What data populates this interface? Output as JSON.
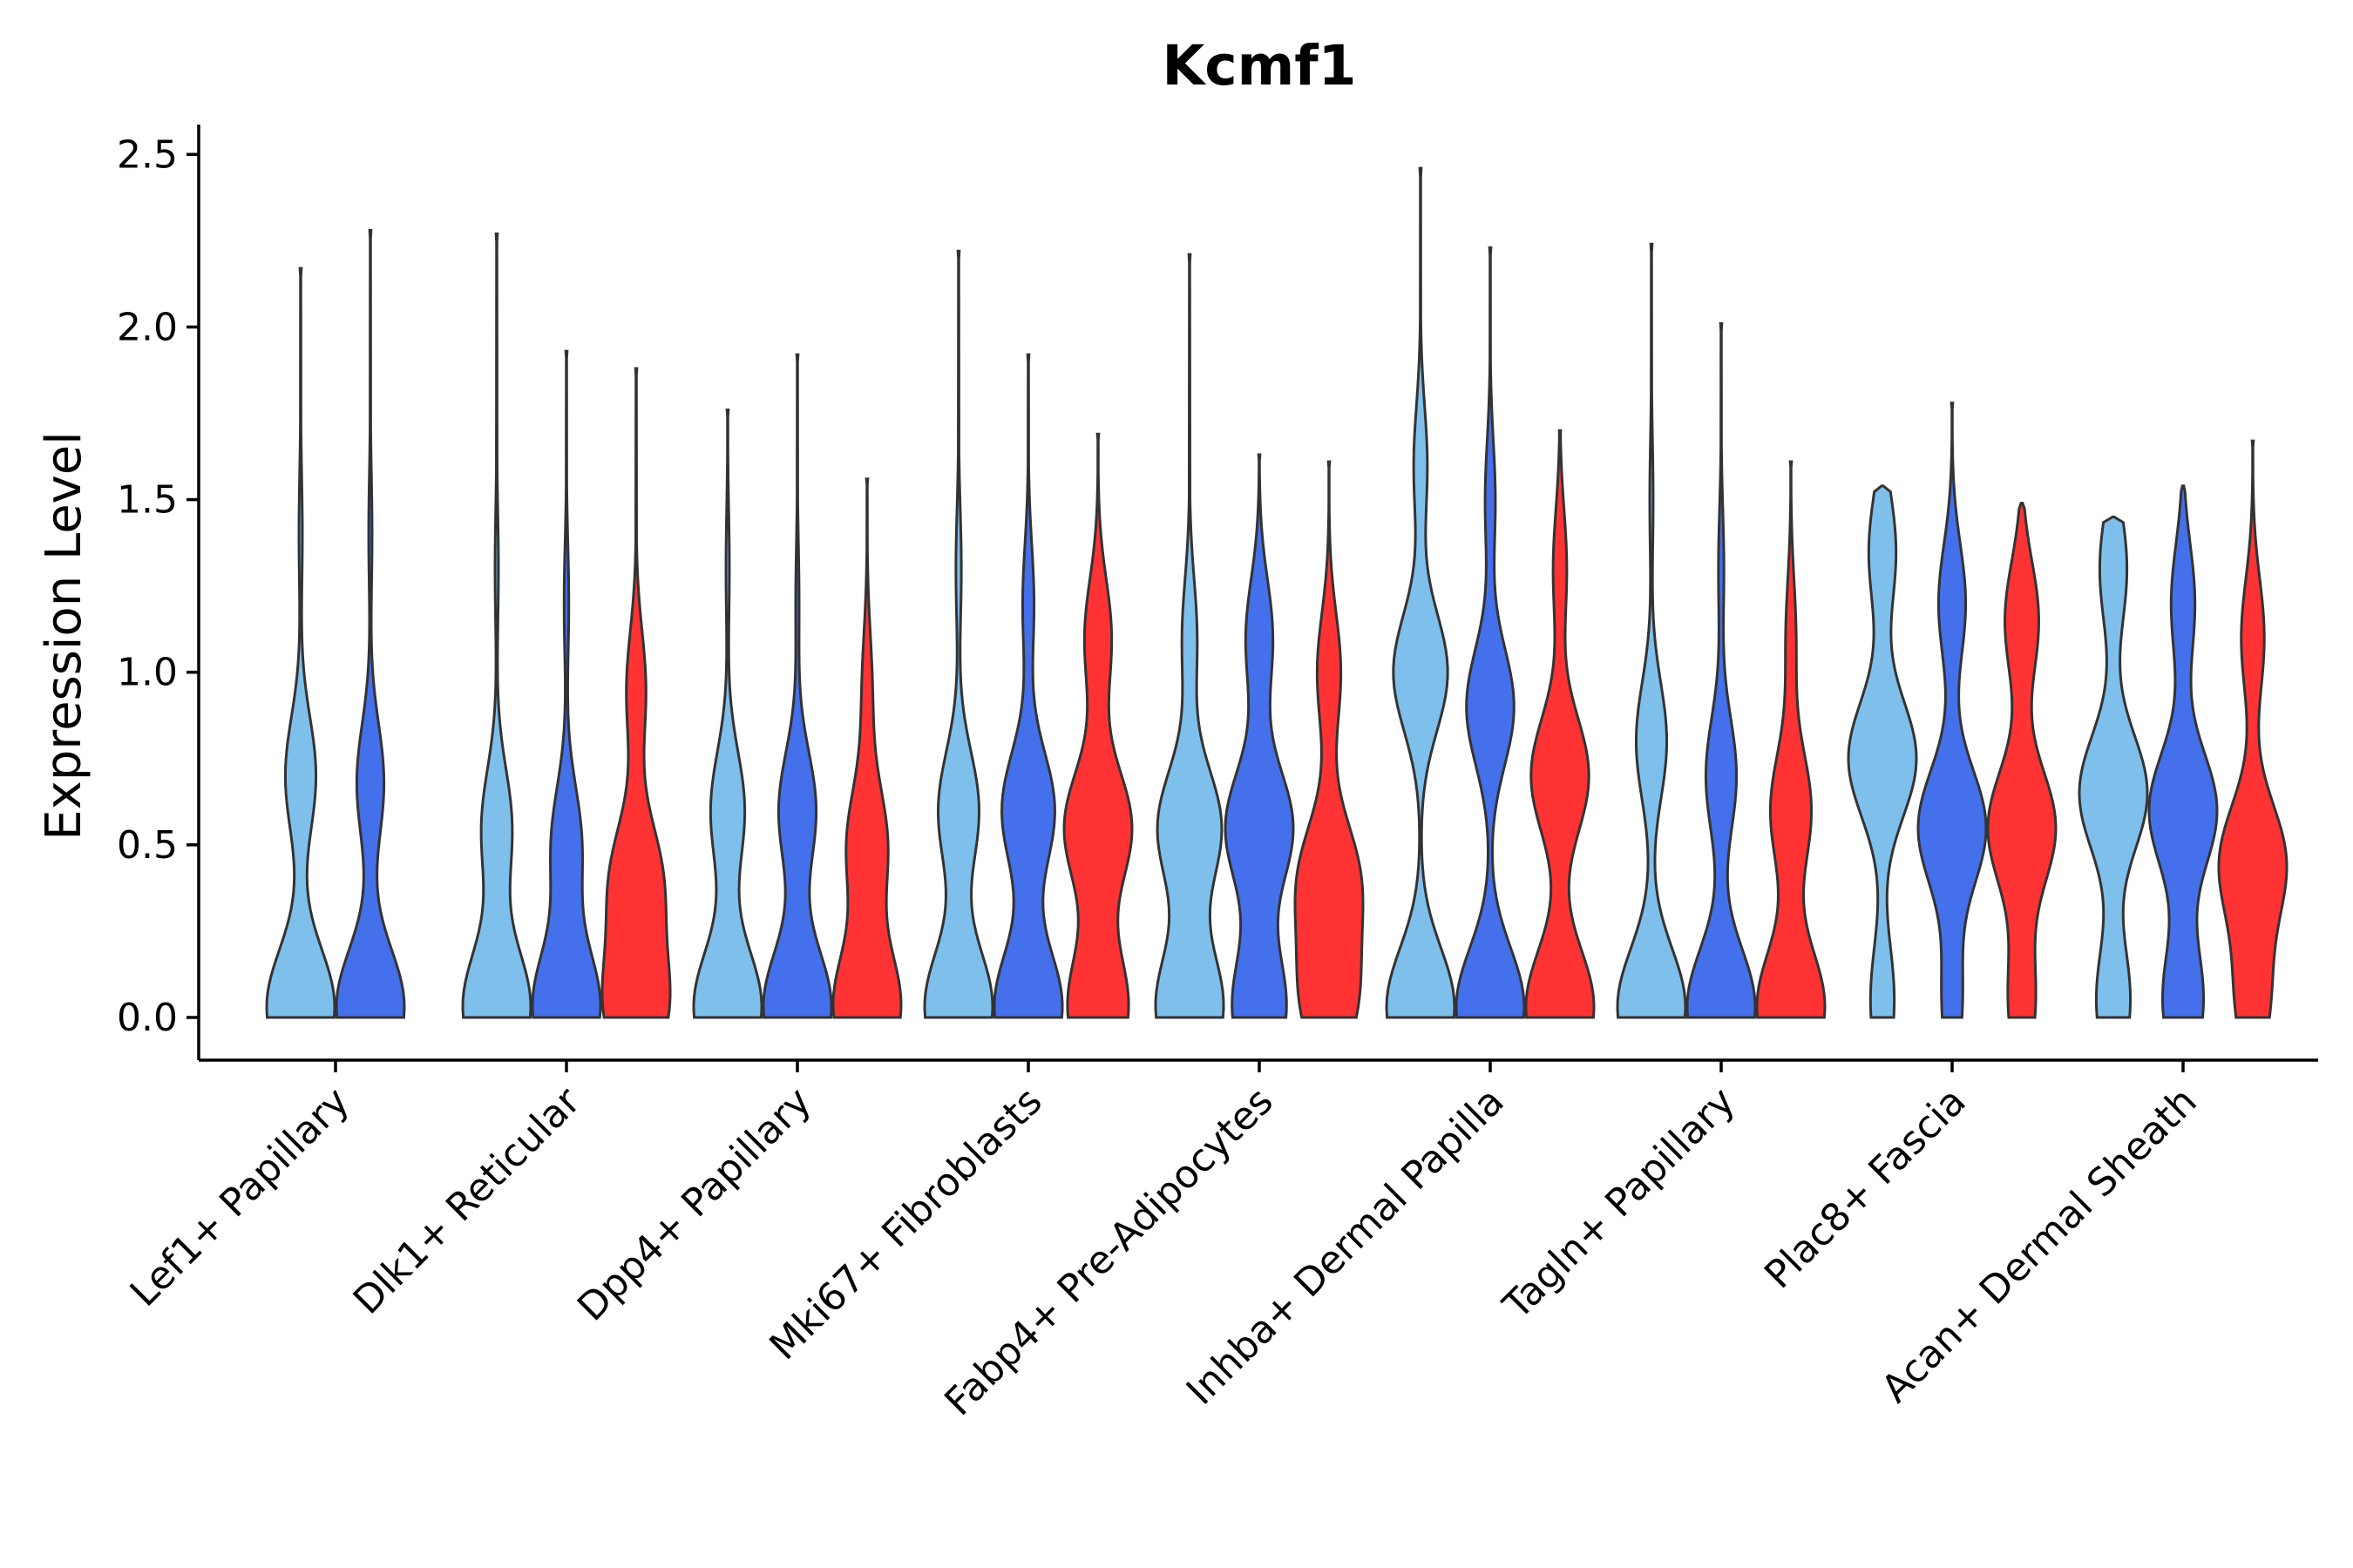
{
  "chart_data": {
    "type": "violin",
    "title": "Kcmf1",
    "xlabel": "",
    "ylabel": "Expression Level",
    "ylim": [
      -0.12,
      2.6
    ],
    "yticks": [
      0.0,
      0.5,
      1.0,
      1.5,
      2.0,
      2.5
    ],
    "ytick_labels": [
      "0.0",
      "0.5",
      "1.0",
      "1.5",
      "2.0",
      "2.5"
    ],
    "grid": false,
    "legend": "none",
    "group_colors": [
      "#7fbfeb",
      "#4470ec",
      "#ff3333"
    ],
    "categories": [
      {
        "label": "Lef1+ Papillary",
        "violins": [
          {
            "group": 0,
            "max": 2.17,
            "peaks": [
              [
                0.03,
                1.0
              ],
              [
                0.7,
                0.45
              ],
              [
                1.4,
                0.05
              ]
            ]
          },
          {
            "group": 1,
            "max": 2.28,
            "peaks": [
              [
                0.03,
                1.0
              ],
              [
                0.68,
                0.4
              ],
              [
                1.4,
                0.05
              ]
            ]
          }
        ]
      },
      {
        "label": "Dlk1+ Reticular",
        "violins": [
          {
            "group": 0,
            "max": 2.27,
            "peaks": [
              [
                0.03,
                1.0
              ],
              [
                0.55,
                0.45
              ],
              [
                1.3,
                0.05
              ]
            ]
          },
          {
            "group": 1,
            "max": 1.93,
            "peaks": [
              [
                0.03,
                1.0
              ],
              [
                0.5,
                0.45
              ],
              [
                1.2,
                0.07
              ]
            ]
          },
          {
            "group": 2,
            "max": 1.88,
            "peaks": [
              [
                0.03,
                0.8
              ],
              [
                0.4,
                0.65
              ],
              [
                0.95,
                0.25
              ]
            ]
          }
        ]
      },
      {
        "label": "Dpp4+ Papillary",
        "violins": [
          {
            "group": 0,
            "max": 1.76,
            "peaks": [
              [
                0.03,
                1.0
              ],
              [
                0.6,
                0.5
              ],
              [
                1.3,
                0.05
              ]
            ]
          },
          {
            "group": 1,
            "max": 1.92,
            "peaks": [
              [
                0.03,
                1.0
              ],
              [
                0.6,
                0.55
              ],
              [
                1.2,
                0.05
              ]
            ]
          },
          {
            "group": 2,
            "max": 1.56,
            "peaks": [
              [
                0.03,
                1.0
              ],
              [
                0.5,
                0.6
              ],
              [
                0.95,
                0.15
              ]
            ]
          }
        ]
      },
      {
        "label": "Mki67+ Fibroblasts",
        "violins": [
          {
            "group": 0,
            "max": 2.22,
            "peaks": [
              [
                0.03,
                1.0
              ],
              [
                0.6,
                0.6
              ],
              [
                1.3,
                0.08
              ]
            ]
          },
          {
            "group": 1,
            "max": 1.92,
            "peaks": [
              [
                0.03,
                0.9
              ],
              [
                0.6,
                0.7
              ],
              [
                1.2,
                0.15
              ]
            ]
          },
          {
            "group": 2,
            "max": 1.69,
            "peaks": [
              [
                0.03,
                0.9
              ],
              [
                0.55,
                1.0
              ],
              [
                1.1,
                0.4
              ]
            ]
          }
        ]
      },
      {
        "label": "Fabp4+ Pre-Adipocytes",
        "violins": [
          {
            "group": 0,
            "max": 2.21,
            "peaks": [
              [
                0.03,
                0.9
              ],
              [
                0.55,
                0.85
              ],
              [
                1.1,
                0.2
              ]
            ]
          },
          {
            "group": 1,
            "max": 1.63,
            "peaks": [
              [
                0.03,
                0.8
              ],
              [
                0.55,
                1.0
              ],
              [
                1.1,
                0.4
              ]
            ]
          },
          {
            "group": 2,
            "max": 1.61,
            "peaks": [
              [
                0.05,
                0.9
              ],
              [
                0.4,
                1.0
              ],
              [
                1.0,
                0.4
              ]
            ]
          }
        ]
      },
      {
        "label": "Inhba+ Dermal Papilla",
        "violins": [
          {
            "group": 0,
            "max": 2.46,
            "peaks": [
              [
                0.03,
                1.0
              ],
              [
                1.0,
                0.8
              ],
              [
                1.6,
                0.2
              ]
            ]
          },
          {
            "group": 1,
            "max": 2.23,
            "peaks": [
              [
                0.03,
                1.0
              ],
              [
                0.9,
                0.7
              ],
              [
                1.5,
                0.15
              ]
            ]
          },
          {
            "group": 2,
            "max": 1.7,
            "peaks": [
              [
                0.03,
                1.0
              ],
              [
                0.7,
                0.85
              ],
              [
                1.3,
                0.2
              ]
            ]
          }
        ]
      },
      {
        "label": "Tagln+ Papillary",
        "violins": [
          {
            "group": 0,
            "max": 2.24,
            "peaks": [
              [
                0.03,
                1.0
              ],
              [
                0.8,
                0.45
              ],
              [
                1.5,
                0.05
              ]
            ]
          },
          {
            "group": 1,
            "max": 2.01,
            "peaks": [
              [
                0.03,
                1.0
              ],
              [
                0.7,
                0.45
              ],
              [
                1.3,
                0.08
              ]
            ]
          },
          {
            "group": 2,
            "max": 1.61,
            "peaks": [
              [
                0.03,
                1.0
              ],
              [
                0.6,
                0.6
              ],
              [
                1.1,
                0.15
              ]
            ]
          }
        ]
      },
      {
        "label": "Plac8+ Fascia",
        "violins": [
          {
            "group": 0,
            "max": 1.54,
            "peaks": [
              [
                0.05,
                0.35
              ],
              [
                0.75,
                1.0
              ],
              [
                1.35,
                0.4
              ]
            ]
          },
          {
            "group": 1,
            "max": 1.78,
            "peaks": [
              [
                0.05,
                0.3
              ],
              [
                0.55,
                1.0
              ],
              [
                1.2,
                0.4
              ]
            ]
          },
          {
            "group": 2,
            "max": 1.49,
            "peaks": [
              [
                0.05,
                0.4
              ],
              [
                0.55,
                1.0
              ],
              [
                1.15,
                0.5
              ]
            ]
          }
        ]
      },
      {
        "label": "Acan+ Dermal Sheath",
        "violins": [
          {
            "group": 0,
            "max": 1.45,
            "peaks": [
              [
                0.05,
                0.5
              ],
              [
                0.65,
                1.0
              ],
              [
                1.3,
                0.4
              ]
            ]
          },
          {
            "group": 1,
            "max": 1.54,
            "peaks": [
              [
                0.05,
                0.6
              ],
              [
                0.6,
                1.0
              ],
              [
                1.2,
                0.35
              ]
            ]
          },
          {
            "group": 2,
            "max": 1.67,
            "peaks": [
              [
                0.05,
                0.5
              ],
              [
                0.45,
                1.0
              ],
              [
                1.1,
                0.35
              ]
            ]
          }
        ]
      }
    ]
  }
}
